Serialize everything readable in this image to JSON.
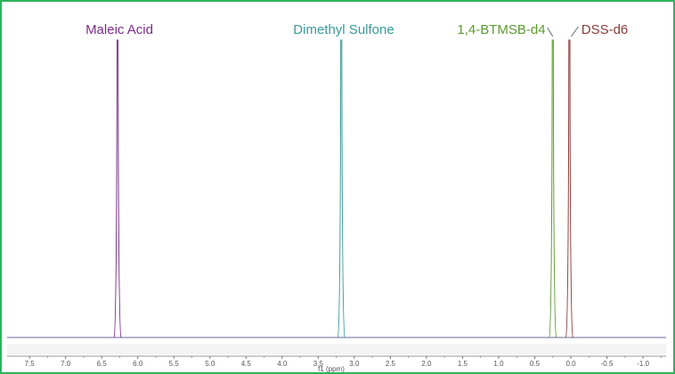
{
  "chart_data": {
    "type": "line",
    "xlabel": "f1 (ppm)",
    "xlim": [
      7.81,
      -1.32
    ],
    "x_reversed": true,
    "grid": false,
    "ticks": [
      "7.5",
      "7.0",
      "6.5",
      "6.0",
      "5.5",
      "5.0",
      "4.5",
      "4.0",
      "3.5",
      "3.0",
      "2.5",
      "2.0",
      "1.5",
      "1.0",
      "0.5",
      "0.0",
      "-0.5",
      "-1.0"
    ],
    "tick_values": [
      7.5,
      7.0,
      6.5,
      6.0,
      5.5,
      5.0,
      4.5,
      4.0,
      3.5,
      3.0,
      2.5,
      2.0,
      1.5,
      1.0,
      0.5,
      0.0,
      -0.5,
      -1.0
    ],
    "series": [
      {
        "name": "Maleic Acid",
        "peak_ppm": 6.28,
        "relative_height": 1.0,
        "color": "#7b2d8b"
      },
      {
        "name": "Dimethyl Sulfone",
        "peak_ppm": 3.18,
        "relative_height": 1.0,
        "color": "#3a9a9a"
      },
      {
        "name": "1,4-BTMSB-d4",
        "peak_ppm": 0.25,
        "relative_height": 1.0,
        "color": "#5c9a2e"
      },
      {
        "name": "DSS-d6",
        "peak_ppm": 0.02,
        "relative_height": 1.0,
        "color": "#8b3a3a"
      }
    ],
    "baseline_color": "#6a6a9a",
    "border_color": "#2db35d"
  }
}
